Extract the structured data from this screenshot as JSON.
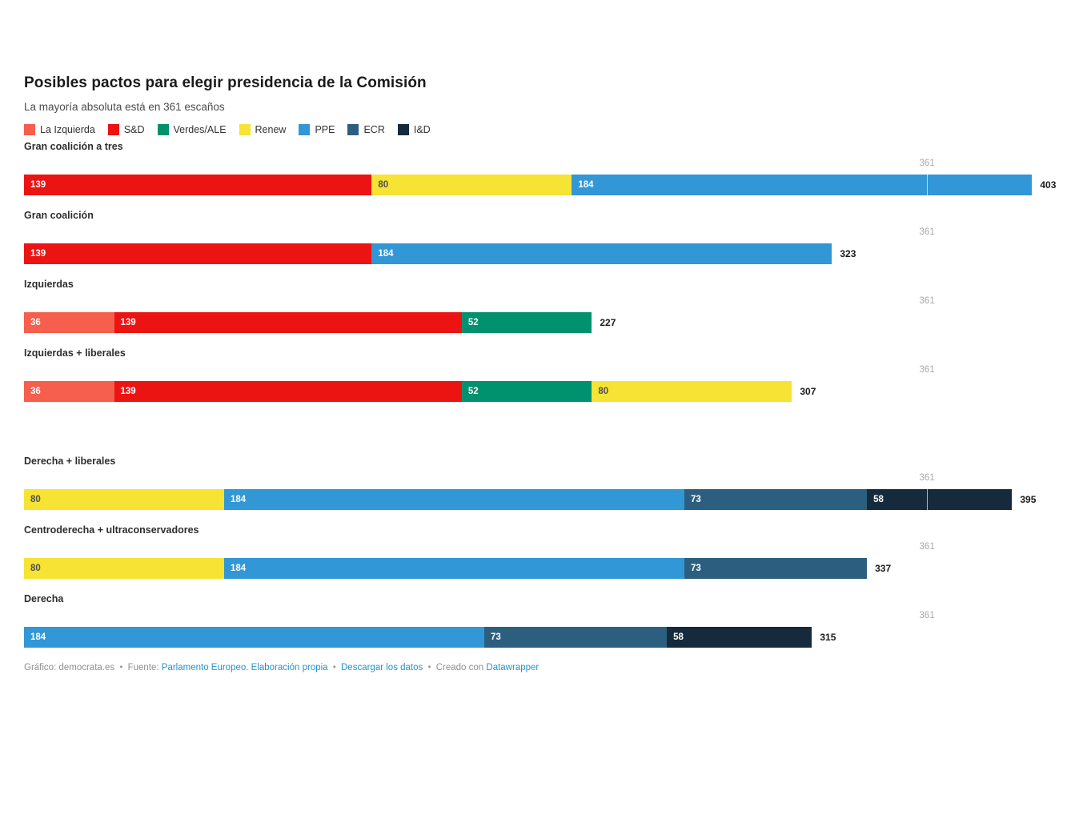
{
  "header": {
    "title": "Posibles pactos para elegir presidencia de la Comisión",
    "subtitle": "La mayoría absoluta está en 361 escaños"
  },
  "legend": [
    {
      "label": "La Izquierda",
      "color": "#F65E4D"
    },
    {
      "label": "S&D",
      "color": "#EC1313"
    },
    {
      "label": "Verdes/ALE",
      "color": "#00916E"
    },
    {
      "label": "Renew",
      "color": "#F6E334"
    },
    {
      "label": "PPE",
      "color": "#3197D6"
    },
    {
      "label": "ECR",
      "color": "#2C5F7F"
    },
    {
      "label": "I&D",
      "color": "#152B3D"
    }
  ],
  "party_colors": {
    "La Izquierda": "#F65E4D",
    "S&D": "#EC1313",
    "Verdes/ALE": "#00916E",
    "Renew": "#F6E334",
    "PPE": "#3197D6",
    "ECR": "#2C5F7F",
    "I&D": "#152B3D"
  },
  "chart_data": {
    "type": "bar",
    "stacked": true,
    "orientation": "horizontal",
    "unit": "escaños",
    "reference_line": {
      "value": 361,
      "label": "361"
    },
    "xlim": [
      0,
      412
    ],
    "rows": [
      {
        "label": "Gran coalición a tres",
        "total": 403,
        "gap_before": false,
        "segments": [
          {
            "party": "S&D",
            "value": 139
          },
          {
            "party": "Renew",
            "value": 80
          },
          {
            "party": "PPE",
            "value": 184
          }
        ]
      },
      {
        "label": "Gran coalición",
        "total": 323,
        "gap_before": false,
        "segments": [
          {
            "party": "S&D",
            "value": 139
          },
          {
            "party": "PPE",
            "value": 184
          }
        ]
      },
      {
        "label": "Izquierdas",
        "total": 227,
        "gap_before": false,
        "segments": [
          {
            "party": "La Izquierda",
            "value": 36
          },
          {
            "party": "S&D",
            "value": 139
          },
          {
            "party": "Verdes/ALE",
            "value": 52
          }
        ]
      },
      {
        "label": "Izquierdas + liberales",
        "total": 307,
        "gap_before": false,
        "segments": [
          {
            "party": "La Izquierda",
            "value": 36
          },
          {
            "party": "S&D",
            "value": 139
          },
          {
            "party": "Verdes/ALE",
            "value": 52
          },
          {
            "party": "Renew",
            "value": 80
          }
        ]
      },
      {
        "label": "Derecha + liberales",
        "total": 395,
        "gap_before": true,
        "segments": [
          {
            "party": "Renew",
            "value": 80
          },
          {
            "party": "PPE",
            "value": 184
          },
          {
            "party": "ECR",
            "value": 73
          },
          {
            "party": "I&D",
            "value": 58
          }
        ]
      },
      {
        "label": "Centroderecha + ultraconservadores",
        "total": 337,
        "gap_before": false,
        "segments": [
          {
            "party": "Renew",
            "value": 80
          },
          {
            "party": "PPE",
            "value": 184
          },
          {
            "party": "ECR",
            "value": 73
          }
        ]
      },
      {
        "label": "Derecha",
        "total": 315,
        "gap_before": false,
        "segments": [
          {
            "party": "PPE",
            "value": 184
          },
          {
            "party": "ECR",
            "value": 73
          },
          {
            "party": "I&D",
            "value": 58
          }
        ]
      }
    ]
  },
  "footer": {
    "byline": "Gráfico: democrata.es",
    "source_label": "Fuente:",
    "source_link": "Parlamento Europeo. Elaboración propia",
    "download_link": "Descargar los datos",
    "created_with": "Creado con",
    "creator_link": "Datawrapper",
    "separator": "•"
  }
}
